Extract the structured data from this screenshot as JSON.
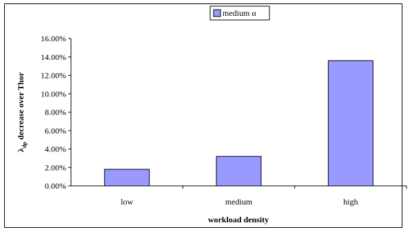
{
  "chart_data": {
    "type": "bar",
    "categories": [
      "low",
      "medium",
      "high"
    ],
    "series": [
      {
        "name": "medium α",
        "values": [
          1.8,
          3.2,
          13.6
        ],
        "color": "#9999ff"
      }
    ],
    "xlabel": "workload density",
    "ylabel_main": "λ",
    "ylabel_sub": "dp",
    "ylabel_rest": " decrease over Thor",
    "ylim": [
      0,
      16
    ],
    "ytick_step": 2,
    "ytick_labels": [
      "0.00%",
      "2.00%",
      "4.00%",
      "6.00%",
      "8.00%",
      "10.00%",
      "12.00%",
      "14.00%",
      "16.00%"
    ],
    "grid": false,
    "legend_position": "top-center"
  }
}
